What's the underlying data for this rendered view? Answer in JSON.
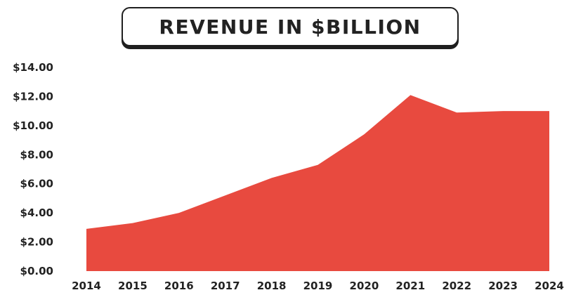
{
  "chart_data": {
    "type": "area",
    "title": "REVENUE IN $BILLION",
    "xlabel": "",
    "ylabel": "",
    "x": [
      "2014",
      "2015",
      "2016",
      "2017",
      "2018",
      "2019",
      "2020",
      "2021",
      "2022",
      "2023",
      "2024"
    ],
    "series": [
      {
        "values": [
          2.9,
          3.3,
          4.0,
          5.2,
          6.4,
          7.3,
          9.4,
          12.1,
          10.9,
          11.0,
          11.0
        ]
      }
    ],
    "ylim": [
      0,
      14
    ],
    "y_ticks": [
      "$0.00",
      "$2.00",
      "$4.00",
      "$6.00",
      "$8.00",
      "$10.00",
      "$12.00",
      "$14.00"
    ],
    "grid": false,
    "legend": "none",
    "fill_color": "#E84A3F"
  }
}
